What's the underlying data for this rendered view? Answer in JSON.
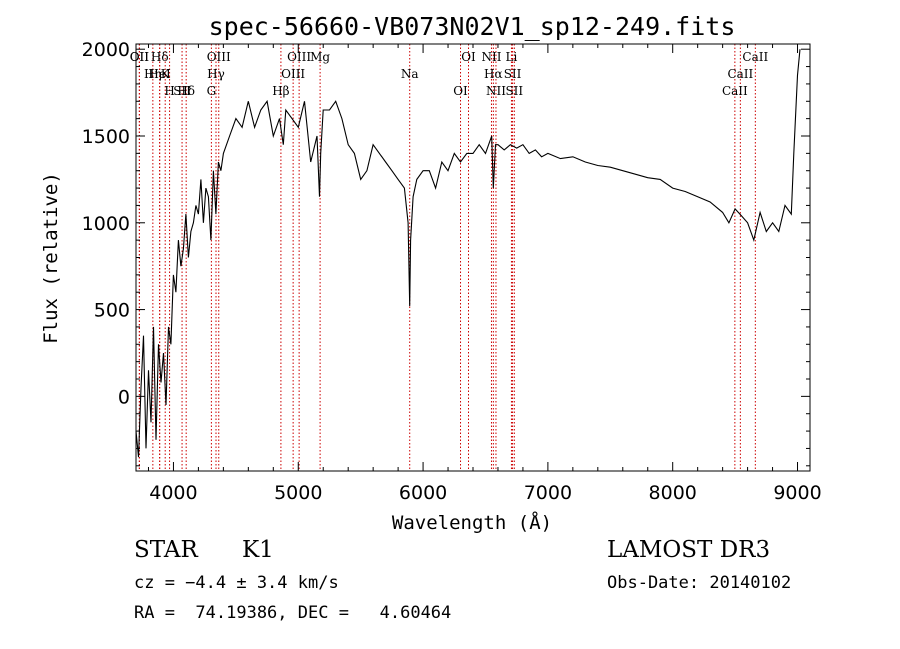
{
  "chart_data": {
    "type": "line",
    "title": "spec-56660-VB073N02V1_sp12-249.fits",
    "xlabel": "Wavelength (Å)",
    "ylabel": "Flux (relative)",
    "xlim": [
      3700,
      9100
    ],
    "ylim": [
      -430,
      2030
    ],
    "xticks": [
      4000,
      5000,
      6000,
      7000,
      8000,
      9000
    ],
    "yticks": [
      0,
      500,
      1000,
      1500,
      2000
    ],
    "grid": false,
    "spectrum": {
      "x": [
        3700,
        3720,
        3740,
        3760,
        3780,
        3800,
        3820,
        3840,
        3860,
        3880,
        3900,
        3920,
        3940,
        3960,
        3980,
        4000,
        4020,
        4040,
        4060,
        4080,
        4100,
        4120,
        4140,
        4160,
        4180,
        4200,
        4220,
        4240,
        4260,
        4280,
        4300,
        4320,
        4340,
        4360,
        4380,
        4400,
        4450,
        4500,
        4550,
        4600,
        4650,
        4700,
        4750,
        4800,
        4850,
        4880,
        4900,
        4950,
        5000,
        5050,
        5100,
        5150,
        5170,
        5180,
        5200,
        5250,
        5300,
        5350,
        5400,
        5450,
        5500,
        5550,
        5600,
        5650,
        5700,
        5750,
        5800,
        5850,
        5880,
        5893,
        5900,
        5920,
        5950,
        6000,
        6050,
        6100,
        6150,
        6200,
        6250,
        6300,
        6350,
        6400,
        6450,
        6500,
        6550,
        6563,
        6580,
        6600,
        6650,
        6700,
        6750,
        6800,
        6850,
        6900,
        6950,
        7000,
        7100,
        7200,
        7300,
        7400,
        7500,
        7600,
        7700,
        7800,
        7900,
        8000,
        8100,
        8200,
        8300,
        8400,
        8450,
        8500,
        8550,
        8600,
        8650,
        8700,
        8750,
        8800,
        8850,
        8900,
        8950,
        8970,
        9000,
        9020
      ],
      "y": [
        -200,
        -350,
        50,
        350,
        -300,
        150,
        -150,
        400,
        -250,
        300,
        80,
        250,
        -50,
        400,
        300,
        700,
        600,
        900,
        750,
        850,
        1050,
        800,
        950,
        1000,
        1100,
        1050,
        1250,
        1000,
        1200,
        1150,
        900,
        1300,
        1050,
        1350,
        1300,
        1400,
        1500,
        1600,
        1550,
        1700,
        1550,
        1650,
        1700,
        1500,
        1600,
        1450,
        1650,
        1600,
        1550,
        1700,
        1350,
        1500,
        1150,
        1400,
        1650,
        1650,
        1700,
        1600,
        1450,
        1400,
        1250,
        1300,
        1450,
        1400,
        1350,
        1300,
        1250,
        1200,
        1000,
        520,
        900,
        1150,
        1250,
        1300,
        1300,
        1200,
        1350,
        1300,
        1400,
        1350,
        1400,
        1400,
        1450,
        1400,
        1500,
        1200,
        1450,
        1450,
        1420,
        1450,
        1430,
        1450,
        1400,
        1420,
        1380,
        1400,
        1370,
        1380,
        1350,
        1330,
        1320,
        1300,
        1280,
        1260,
        1250,
        1200,
        1180,
        1150,
        1120,
        1060,
        1000,
        1080,
        1040,
        1000,
        900,
        1060,
        950,
        1000,
        950,
        1100,
        1050,
        1400,
        1850,
        2000
      ]
    },
    "lines": [
      {
        "name": "Hδ",
        "x": 3890
      },
      {
        "name": "K",
        "x": 3934
      },
      {
        "name": "Hδ",
        "x": 4102
      },
      {
        "name": "OII",
        "x": 3727
      },
      {
        "name": "HeI",
        "x": 3889
      },
      {
        "name": "SII",
        "x": 4069
      },
      {
        "name": "OII",
        "x": 3727
      },
      {
        "name": "Hη",
        "x": 3835
      },
      {
        "name": "H",
        "x": 3969
      },
      {
        "name": "OIII",
        "x": 4363
      },
      {
        "name": "Hγ",
        "x": 4341
      },
      {
        "name": "G",
        "x": 4304
      },
      {
        "name": "OIII",
        "x": 5007
      },
      {
        "name": "OIII",
        "x": 4959
      },
      {
        "name": "Hβ",
        "x": 4861
      },
      {
        "name": "Mg",
        "x": 5175
      },
      {
        "name": "Na",
        "x": 5893
      },
      {
        "name": "OI",
        "x": 6300
      },
      {
        "name": "OI",
        "x": 6364
      },
      {
        "name": "Hα",
        "x": 6563
      },
      {
        "name": "NII",
        "x": 6584
      },
      {
        "name": "NII",
        "x": 6548
      },
      {
        "name": "SII",
        "x": 6717
      },
      {
        "name": "SII",
        "x": 6731
      },
      {
        "name": "Li",
        "x": 6708
      },
      {
        "name": "CaII",
        "x": 8542
      },
      {
        "name": "CaII",
        "x": 8498
      },
      {
        "name": "CaII",
        "x": 8662
      }
    ],
    "line_color": "#cc0000"
  },
  "info": {
    "class": "STAR",
    "subclass": "K1",
    "cz": "cz = −4.4 ± 3.4 km/s",
    "coords": "RA =  74.19386, DEC =   4.60464",
    "survey": "LAMOST DR3",
    "obs_date": "Obs-Date: 20140102"
  }
}
